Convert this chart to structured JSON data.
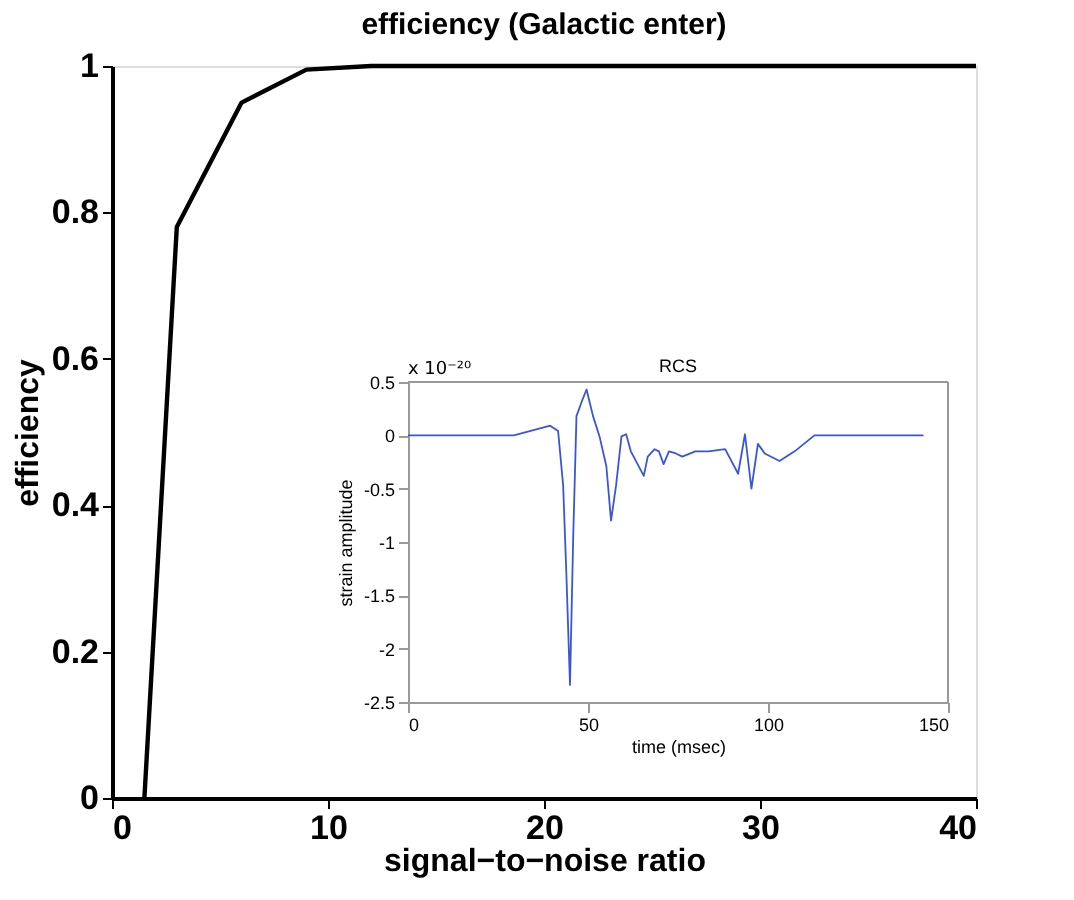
{
  "chart_data": [
    {
      "type": "line",
      "title": "efficiency (Galactic enter)",
      "xlabel": "signal−to−noise ratio",
      "ylabel": "efficiency",
      "xlim": [
        0,
        40
      ],
      "xticks": [
        0,
        10,
        20,
        30,
        40
      ],
      "ylim": [
        0,
        1
      ],
      "yticks": [
        {
          "value": 0,
          "label": "0"
        },
        0.2,
        0.4,
        0.6,
        0.8,
        {
          "value": 1,
          "label": "1"
        }
      ],
      "x": [
        1.5,
        3,
        6,
        9,
        12,
        40
      ],
      "series": [
        {
          "color": "#000000",
          "values": [
            0,
            0.78,
            0.95,
            0.995,
            1,
            1
          ]
        }
      ]
    },
    {
      "type": "line",
      "title": "RCS",
      "xlabel": "time (msec)",
      "ylabel": "strain amplitude",
      "xlim": [
        0,
        150
      ],
      "xticks": [
        0,
        50,
        100,
        150
      ],
      "ylim": [
        -2.5,
        0.5
      ],
      "yticks": [
        -2.5,
        -2,
        -1.5,
        -1,
        -0.5,
        0,
        0.5
      ],
      "annotations": [
        "x 10⁻²⁰"
      ],
      "x": [
        0,
        29.4,
        39.5,
        41.7,
        43.1,
        44,
        45,
        45.9,
        46.8,
        48.3,
        49.6,
        51.4,
        53.2,
        55.1,
        56.4,
        57.8,
        59.3,
        60.6,
        61.9,
        63.3,
        65.5,
        66.6,
        68.5,
        69.7,
        71,
        72.5,
        74.4,
        76.2,
        79.8,
        83.5,
        88.1,
        91.7,
        93.6,
        95.4,
        97.2,
        99.1,
        103.2,
        107.4,
        112.9,
        143.2
      ],
      "series": [
        {
          "color": "#3a55d8",
          "values": [
            0,
            0,
            0.09,
            0.04,
            -0.47,
            -1.31,
            -2.34,
            -0.94,
            0.18,
            0.32,
            0.43,
            0.18,
            -0.01,
            -0.29,
            -0.8,
            -0.47,
            -0.01,
            0.01,
            -0.15,
            -0.24,
            -0.38,
            -0.2,
            -0.13,
            -0.15,
            -0.27,
            -0.15,
            -0.17,
            -0.2,
            -0.15,
            -0.15,
            -0.13,
            -0.36,
            0.01,
            -0.5,
            -0.08,
            -0.17,
            -0.24,
            -0.15,
            0,
            0
          ]
        }
      ]
    }
  ]
}
